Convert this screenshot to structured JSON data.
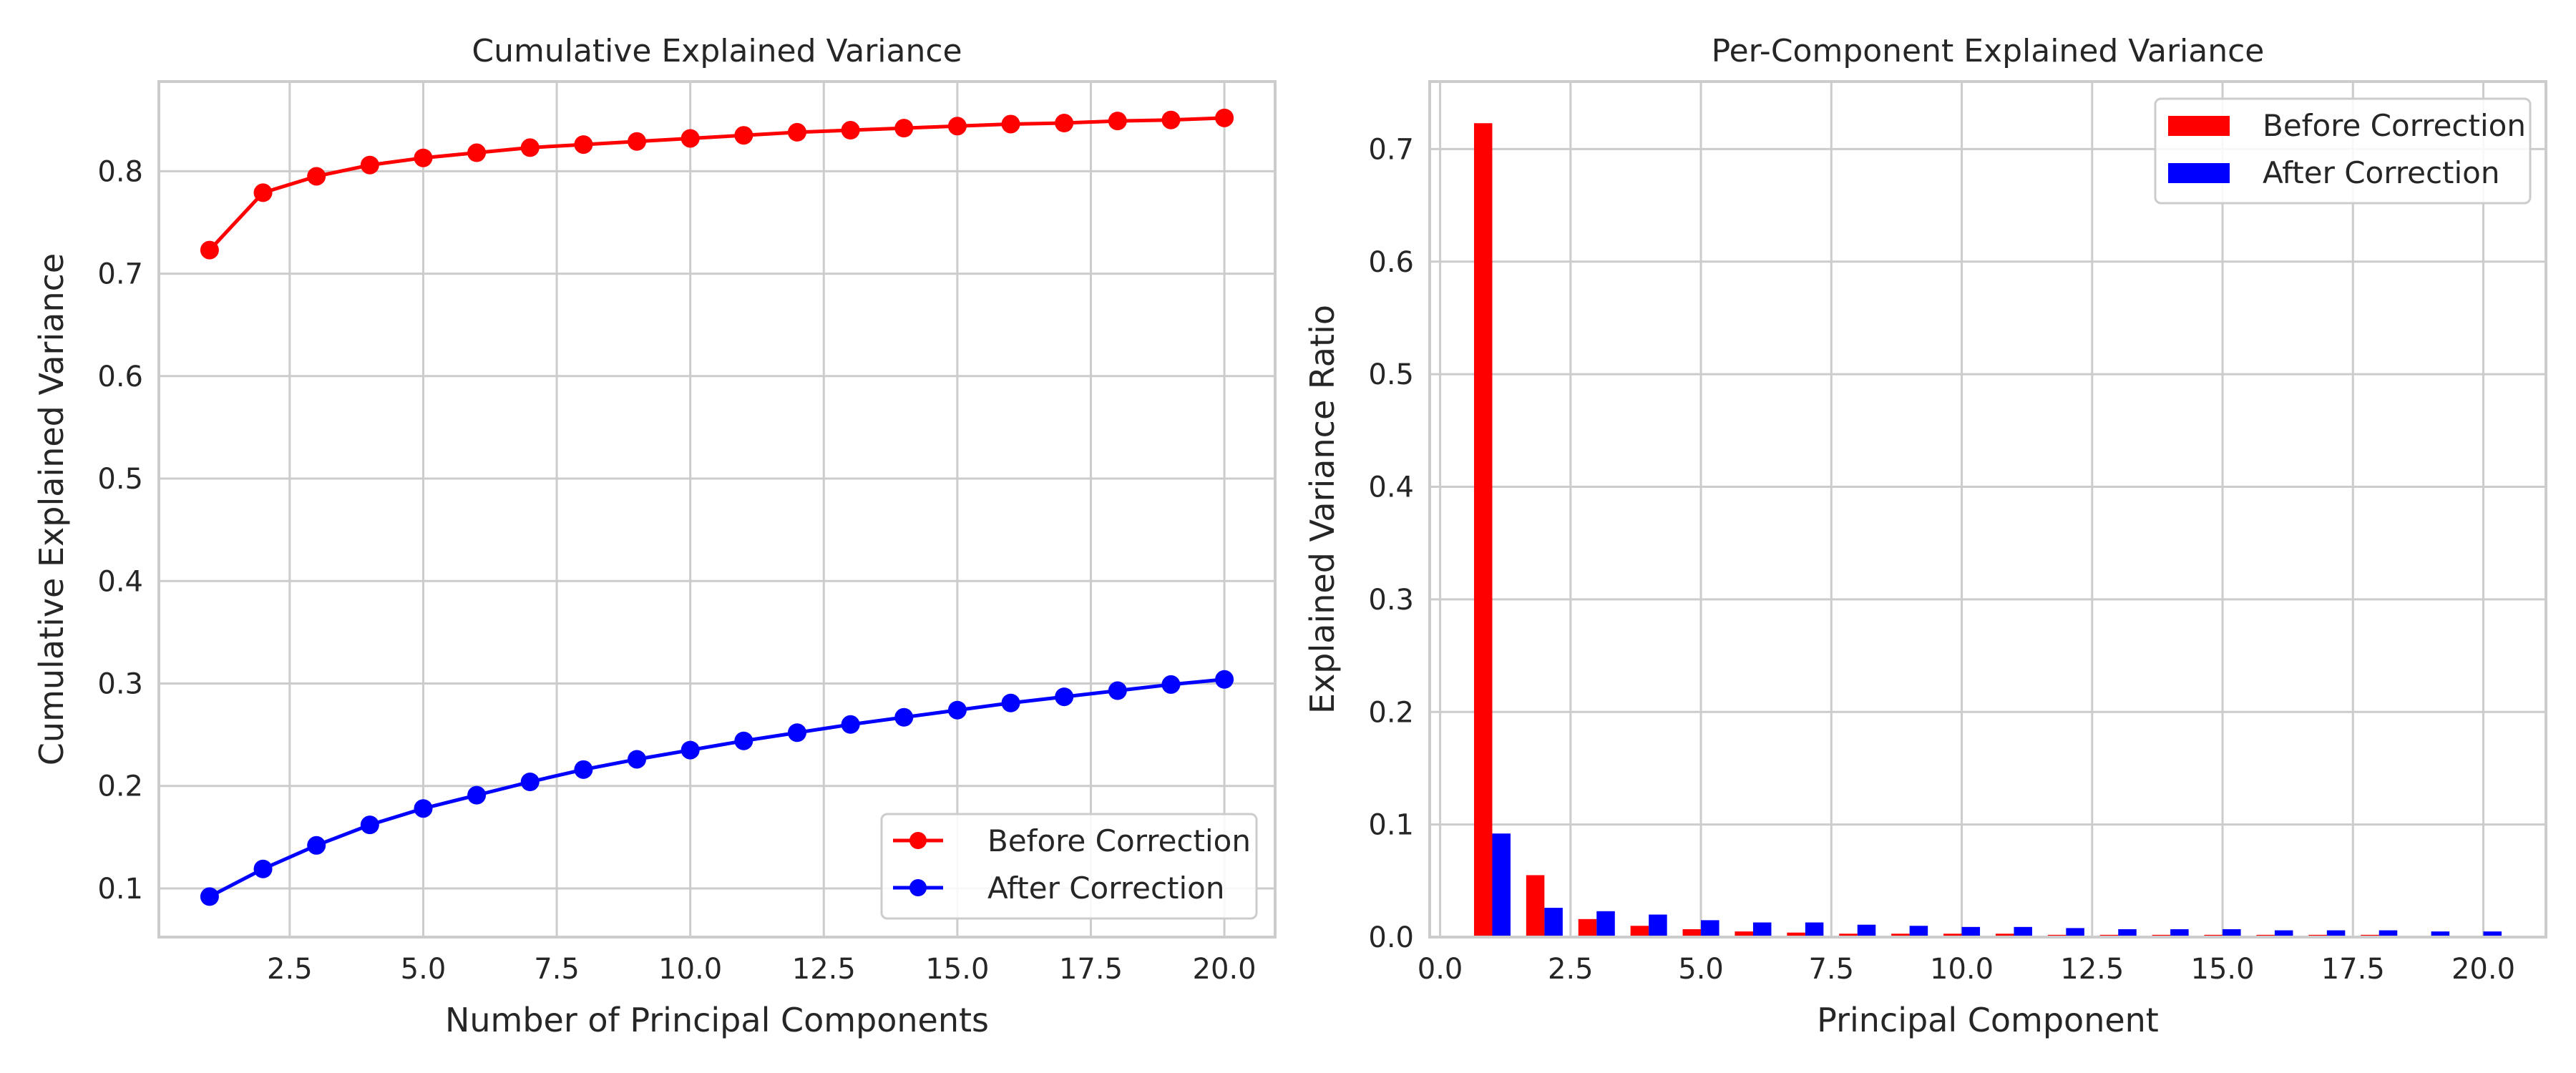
{
  "chart_data": [
    {
      "type": "line",
      "title": "Cumulative Explained Variance",
      "xlabel": "Number of Principal Components",
      "ylabel": "Cumulative Explained Variance",
      "x": [
        1,
        2,
        3,
        4,
        5,
        6,
        7,
        8,
        9,
        10,
        11,
        12,
        13,
        14,
        15,
        16,
        17,
        18,
        19,
        20
      ],
      "xlim": [
        0.05,
        20.95
      ],
      "ylim": [
        0.0525,
        0.8875
      ],
      "xticks": [
        2.5,
        5.0,
        7.5,
        10.0,
        12.5,
        15.0,
        17.5,
        20.0
      ],
      "xtick_labels": [
        "2.5",
        "5.0",
        "7.5",
        "10.0",
        "12.5",
        "15.0",
        "17.5",
        "20.0"
      ],
      "yticks": [
        0.1,
        0.2,
        0.3,
        0.4,
        0.5,
        0.6,
        0.7,
        0.8
      ],
      "ytick_labels": [
        "0.1",
        "0.2",
        "0.3",
        "0.4",
        "0.5",
        "0.6",
        "0.7",
        "0.8"
      ],
      "grid": true,
      "legend_position": "lower-right",
      "series": [
        {
          "name": "Before Correction",
          "color": "#ff0000",
          "values": [
            0.723,
            0.779,
            0.795,
            0.806,
            0.813,
            0.818,
            0.823,
            0.826,
            0.829,
            0.832,
            0.835,
            0.838,
            0.84,
            0.842,
            0.844,
            0.846,
            0.847,
            0.849,
            0.85,
            0.852
          ]
        },
        {
          "name": "After Correction",
          "color": "#0000ff",
          "values": [
            0.092,
            0.119,
            0.142,
            0.162,
            0.178,
            0.191,
            0.204,
            0.216,
            0.226,
            0.235,
            0.244,
            0.252,
            0.26,
            0.267,
            0.274,
            0.281,
            0.287,
            0.293,
            0.299,
            0.304
          ]
        }
      ]
    },
    {
      "type": "bar",
      "title": "Per-Component Explained Variance",
      "xlabel": "Principal Component",
      "ylabel": "Explained Variance Ratio",
      "x": [
        1,
        2,
        3,
        4,
        5,
        6,
        7,
        8,
        9,
        10,
        11,
        12,
        13,
        14,
        15,
        16,
        17,
        18,
        19,
        20
      ],
      "xlim": [
        -0.2,
        21.2
      ],
      "ylim": [
        0.0,
        0.76
      ],
      "xticks": [
        0.0,
        2.5,
        5.0,
        7.5,
        10.0,
        12.5,
        15.0,
        17.5,
        20.0
      ],
      "xtick_labels": [
        "0.0",
        "2.5",
        "5.0",
        "7.5",
        "10.0",
        "12.5",
        "15.0",
        "17.5",
        "20.0"
      ],
      "yticks": [
        0.0,
        0.1,
        0.2,
        0.3,
        0.4,
        0.5,
        0.6,
        0.7
      ],
      "ytick_labels": [
        "0.0",
        "0.1",
        "0.2",
        "0.3",
        "0.4",
        "0.5",
        "0.6",
        "0.7"
      ],
      "bar_width": 0.35,
      "grid": true,
      "legend_position": "upper-right",
      "series": [
        {
          "name": "Before Correction",
          "color": "#ff0000",
          "values": [
            0.723,
            0.055,
            0.016,
            0.01,
            0.007,
            0.005,
            0.004,
            0.003,
            0.003,
            0.003,
            0.003,
            0.002,
            0.002,
            0.002,
            0.002,
            0.002,
            0.002,
            0.002,
            0.001,
            0.001
          ]
        },
        {
          "name": "After Correction",
          "color": "#0000ff",
          "values": [
            0.092,
            0.026,
            0.023,
            0.02,
            0.015,
            0.013,
            0.013,
            0.011,
            0.01,
            0.009,
            0.009,
            0.008,
            0.007,
            0.007,
            0.007,
            0.006,
            0.006,
            0.006,
            0.005,
            0.005
          ]
        }
      ]
    }
  ]
}
